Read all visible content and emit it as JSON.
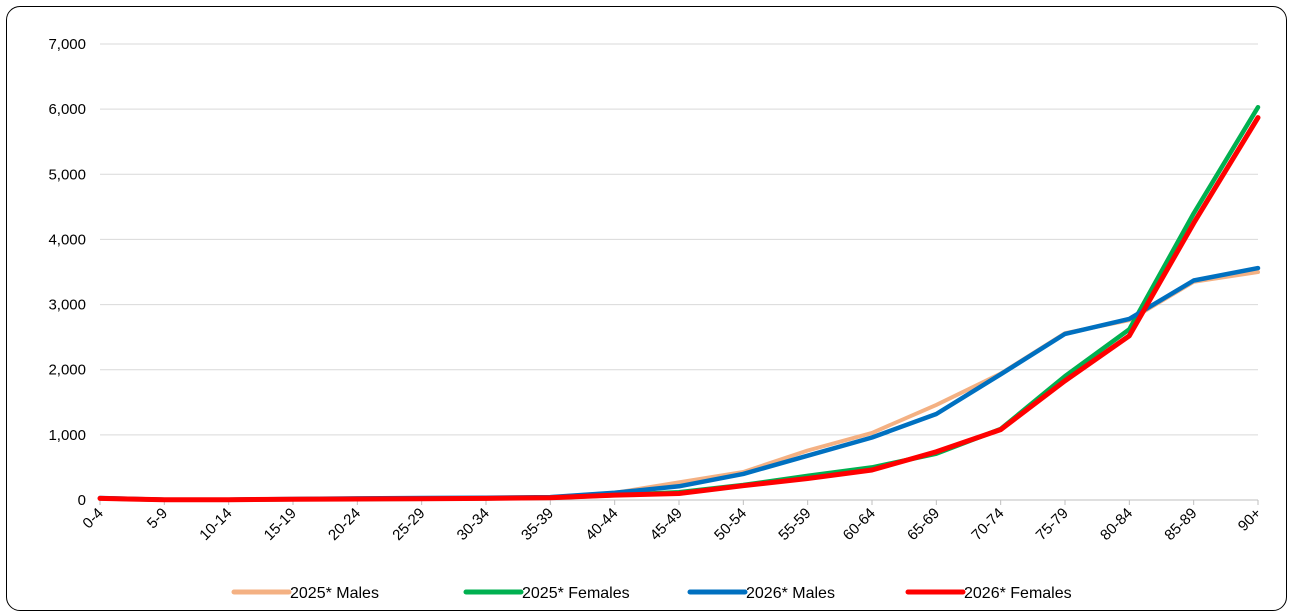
{
  "chart_data": {
    "type": "line",
    "title": "",
    "xlabel": "",
    "ylabel": "",
    "categories": [
      "0-4",
      "5-9",
      "10-14",
      "15-19",
      "20-24",
      "25-29",
      "30-34",
      "35-39",
      "40-44",
      "45-49",
      "50-54",
      "55-59",
      "60-64",
      "65-69",
      "70-74",
      "75-79",
      "80-84",
      "85-89",
      "90+"
    ],
    "ylim": [
      0,
      7000
    ],
    "yticks": [
      "0",
      "1,000",
      "2,000",
      "3,000",
      "4,000",
      "5,000",
      "6,000",
      "7,000"
    ],
    "ytick_values": [
      0,
      1000,
      2000,
      3000,
      4000,
      5000,
      6000,
      7000
    ],
    "grid": true,
    "legend_position": "bottom",
    "series": [
      {
        "name": "2025* Males",
        "color": "#F4B183",
        "width": 4,
        "values": [
          30,
          5,
          5,
          15,
          25,
          30,
          35,
          45,
          110,
          270,
          430,
          760,
          1030,
          1460,
          1940,
          2560,
          2760,
          3350,
          3500
        ]
      },
      {
        "name": "2025* Females",
        "color": "#00B050",
        "width": 4.5,
        "values": [
          25,
          5,
          5,
          10,
          15,
          20,
          25,
          35,
          75,
          120,
          230,
          370,
          500,
          710,
          1090,
          1900,
          2620,
          4400,
          6030
        ]
      },
      {
        "name": "2026* Males",
        "color": "#0070C0",
        "width": 4.5,
        "values": [
          30,
          5,
          5,
          15,
          25,
          30,
          35,
          45,
          110,
          210,
          400,
          680,
          960,
          1320,
          1930,
          2550,
          2780,
          3370,
          3560
        ]
      },
      {
        "name": "2026* Females",
        "color": "#FF0000",
        "width": 5,
        "values": [
          25,
          5,
          5,
          10,
          15,
          20,
          25,
          35,
          75,
          100,
          220,
          330,
          460,
          740,
          1080,
          1830,
          2520,
          4250,
          5870
        ]
      }
    ]
  }
}
